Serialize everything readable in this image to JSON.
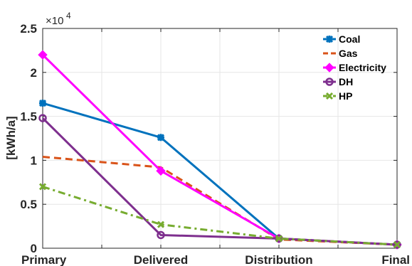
{
  "chart_data": {
    "type": "line",
    "categories": [
      "Primary",
      "Delivered",
      "Distribution",
      "Final"
    ],
    "ylabel": "[kWh/a]",
    "yexponent_label": "×10",
    "yexponent": "4",
    "ylim": [
      0,
      2.5
    ],
    "ytick_values": [
      0,
      0.5,
      1,
      1.5,
      2,
      2.5
    ],
    "ytick_labels": [
      "0",
      "0.5",
      "1",
      "1.5",
      "2",
      "2.5"
    ],
    "grid": true,
    "legend_position": "top-right",
    "series": [
      {
        "name": "Coal",
        "values": [
          1.65,
          1.26,
          0.11,
          0.04
        ],
        "color": "#0072BD",
        "dash": "solid",
        "marker": "asterisk"
      },
      {
        "name": "Gas",
        "values": [
          1.04,
          0.92,
          0.1,
          0.04
        ],
        "color": "#D95319",
        "dash": "dashed",
        "marker": "none"
      },
      {
        "name": "Electricity",
        "values": [
          2.2,
          0.88,
          0.11,
          0.04
        ],
        "color": "#FF00FF",
        "dash": "solid",
        "marker": "diamond"
      },
      {
        "name": "DH",
        "values": [
          1.48,
          0.15,
          0.11,
          0.04
        ],
        "color": "#7E2F8E",
        "dash": "solid",
        "marker": "circle"
      },
      {
        "name": "HP",
        "values": [
          0.7,
          0.27,
          0.11,
          0.04
        ],
        "color": "#77AC30",
        "dash": "dashdot",
        "marker": "x"
      }
    ]
  }
}
